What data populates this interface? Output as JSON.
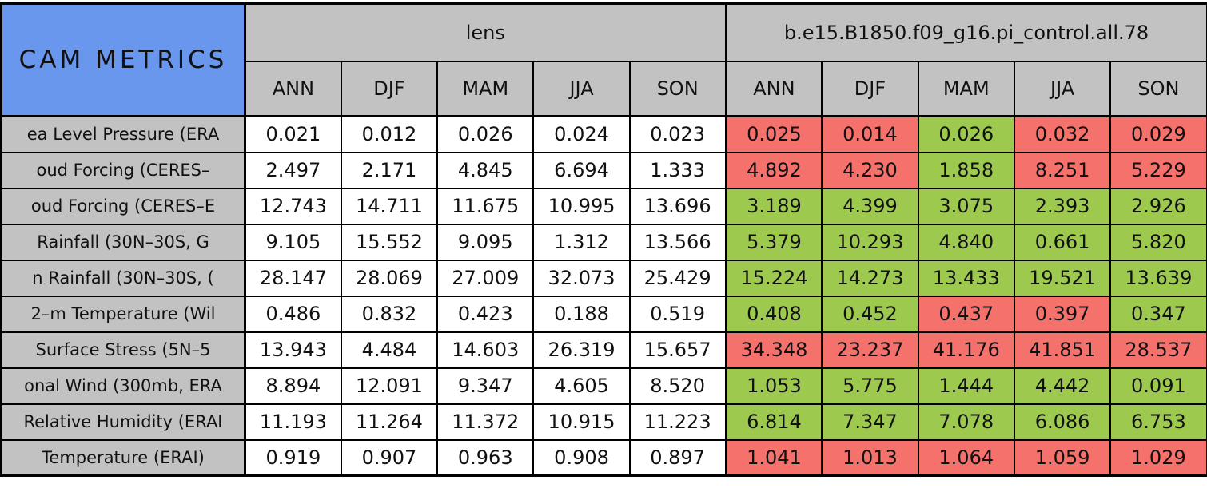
{
  "title": "CAM METRICS",
  "colors": {
    "title_blue": "#6A97EE",
    "header_gray": "#C2C2C2",
    "green": "#9DC94E",
    "red": "#F4716C",
    "cell_white": "#FFFFFF",
    "border_black": "#000000"
  },
  "chart_data": {
    "type": "table",
    "title": "CAM METRICS",
    "column_groups": [
      {
        "label": "lens",
        "columns": [
          "ANN",
          "DJF",
          "MAM",
          "JJA",
          "SON"
        ]
      },
      {
        "label": "b.e15.B1850.f09_g16.pi_control.all.78",
        "columns": [
          "ANN",
          "DJF",
          "MAM",
          "JJA",
          "SON"
        ]
      }
    ],
    "cell_color_legend": {
      "green": "control value lower than lens",
      "red": "control value higher than lens"
    },
    "rows": [
      {
        "label": "ea Level Pressure (ERA",
        "lens": [
          "0.021",
          "0.012",
          "0.026",
          "0.024",
          "0.023"
        ],
        "control": [
          "0.025",
          "0.014",
          "0.026",
          "0.032",
          "0.029"
        ],
        "control_cell_colors": [
          "red",
          "red",
          "green",
          "red",
          "red"
        ]
      },
      {
        "label": "oud Forcing (CERES–",
        "lens": [
          "2.497",
          "2.171",
          "4.845",
          "6.694",
          "1.333"
        ],
        "control": [
          "4.892",
          "4.230",
          "1.858",
          "8.251",
          "5.229"
        ],
        "control_cell_colors": [
          "red",
          "red",
          "green",
          "red",
          "red"
        ]
      },
      {
        "label": "oud Forcing (CERES–E",
        "lens": [
          "12.743",
          "14.711",
          "11.675",
          "10.995",
          "13.696"
        ],
        "control": [
          "3.189",
          "4.399",
          "3.075",
          "2.393",
          "2.926"
        ],
        "control_cell_colors": [
          "green",
          "green",
          "green",
          "green",
          "green"
        ]
      },
      {
        "label": "Rainfall (30N–30S, G",
        "lens": [
          "9.105",
          "15.552",
          "9.095",
          "1.312",
          "13.566"
        ],
        "control": [
          "5.379",
          "10.293",
          "4.840",
          "0.661",
          "5.820"
        ],
        "control_cell_colors": [
          "green",
          "green",
          "green",
          "green",
          "green"
        ]
      },
      {
        "label": "n Rainfall (30N–30S, (",
        "lens": [
          "28.147",
          "28.069",
          "27.009",
          "32.073",
          "25.429"
        ],
        "control": [
          "15.224",
          "14.273",
          "13.433",
          "19.521",
          "13.639"
        ],
        "control_cell_colors": [
          "green",
          "green",
          "green",
          "green",
          "green"
        ]
      },
      {
        "label": "2–m Temperature (Wil",
        "lens": [
          "0.486",
          "0.832",
          "0.423",
          "0.188",
          "0.519"
        ],
        "control": [
          "0.408",
          "0.452",
          "0.437",
          "0.397",
          "0.347"
        ],
        "control_cell_colors": [
          "green",
          "green",
          "red",
          "red",
          "green"
        ]
      },
      {
        "label": "Surface Stress (5N–5",
        "lens": [
          "13.943",
          "4.484",
          "14.603",
          "26.319",
          "15.657"
        ],
        "control": [
          "34.348",
          "23.237",
          "41.176",
          "41.851",
          "28.537"
        ],
        "control_cell_colors": [
          "red",
          "red",
          "red",
          "red",
          "red"
        ]
      },
      {
        "label": "onal Wind (300mb, ERA",
        "lens": [
          "8.894",
          "12.091",
          "9.347",
          "4.605",
          "8.520"
        ],
        "control": [
          "1.053",
          "5.775",
          "1.444",
          "4.442",
          "0.091"
        ],
        "control_cell_colors": [
          "green",
          "green",
          "green",
          "green",
          "green"
        ]
      },
      {
        "label": "Relative Humidity (ERAI",
        "lens": [
          "11.193",
          "11.264",
          "11.372",
          "10.915",
          "11.223"
        ],
        "control": [
          "6.814",
          "7.347",
          "7.078",
          "6.086",
          "6.753"
        ],
        "control_cell_colors": [
          "green",
          "green",
          "green",
          "green",
          "green"
        ]
      },
      {
        "label": "Temperature (ERAI)",
        "lens": [
          "0.919",
          "0.907",
          "0.963",
          "0.908",
          "0.897"
        ],
        "control": [
          "1.041",
          "1.013",
          "1.064",
          "1.059",
          "1.029"
        ],
        "control_cell_colors": [
          "red",
          "red",
          "red",
          "red",
          "red"
        ]
      }
    ]
  }
}
